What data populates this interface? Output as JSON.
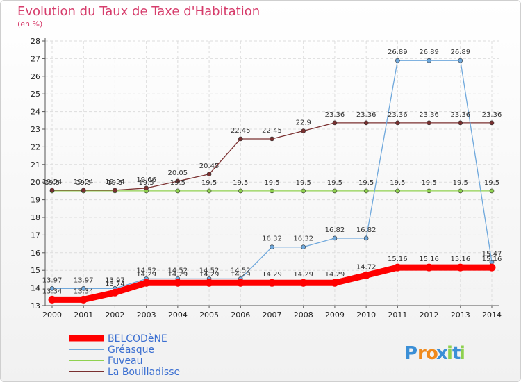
{
  "chart_data": {
    "type": "line",
    "title": "Evolution du Taux de Taxe d'Habitation",
    "subtitle": "(en %)",
    "x": [
      "2000",
      "2001",
      "2002",
      "2003",
      "2004",
      "2005",
      "2006",
      "2007",
      "2008",
      "2009",
      "2010",
      "2011",
      "2012",
      "2013",
      "2014"
    ],
    "ylim": [
      13,
      28
    ],
    "yticks": [
      13,
      14,
      15,
      16,
      17,
      18,
      19,
      20,
      21,
      22,
      23,
      24,
      25,
      26,
      27,
      28
    ],
    "grid": true,
    "legend_position": "bottom-left",
    "series": [
      {
        "name": "BELCODèNE",
        "color": "#ff0000",
        "values": [
          13.34,
          13.34,
          13.74,
          14.29,
          14.29,
          14.29,
          14.29,
          14.29,
          14.29,
          14.29,
          14.72,
          15.16,
          15.16,
          15.16,
          15.16
        ],
        "labels": [
          "13.34",
          "13.34",
          "13.74",
          "14.29",
          "14.29",
          "14.29",
          "14.29",
          "14.29",
          "14.29",
          "14.29",
          "14.72",
          "15.16",
          "15.16",
          "15.16",
          "15.16"
        ]
      },
      {
        "name": "Gréasque",
        "color": "#6fa8dc",
        "values": [
          13.97,
          13.97,
          13.97,
          14.52,
          14.52,
          14.52,
          14.52,
          16.32,
          16.32,
          16.82,
          16.82,
          26.89,
          26.89,
          26.89,
          15.47
        ],
        "labels": [
          "13.97",
          "13.97",
          "13.97",
          "14.52",
          "14.52",
          "14.52",
          "14.52",
          "16.32",
          "16.32",
          "16.82",
          "16.82",
          "26.89",
          "26.89",
          "26.89",
          "15.47"
        ]
      },
      {
        "name": "Fuveau",
        "color": "#8fd14f",
        "values": [
          19.5,
          19.5,
          19.5,
          19.5,
          19.5,
          19.5,
          19.5,
          19.5,
          19.5,
          19.5,
          19.5,
          19.5,
          19.5,
          19.5,
          19.5
        ],
        "labels": [
          "19.5",
          "19.5",
          "19.5",
          "19.5",
          "19.5",
          "19.5",
          "19.5",
          "19.5",
          "19.5",
          "19.5",
          "19.5",
          "19.5",
          "19.5",
          "19.5",
          "19.5"
        ]
      },
      {
        "name": "La Bouilladisse",
        "color": "#7a3030",
        "values": [
          19.54,
          19.54,
          19.54,
          19.66,
          20.05,
          20.45,
          22.45,
          22.45,
          22.9,
          23.36,
          23.36,
          23.36,
          23.36,
          23.36,
          23.36
        ],
        "labels": [
          "19.54",
          "19.54",
          "19.54",
          "19.66",
          "20.05",
          "20.45",
          "22.45",
          "22.45",
          "22.9",
          "23.36",
          "23.36",
          "23.36",
          "23.36",
          "23.36",
          "23.36"
        ]
      }
    ]
  },
  "brand": {
    "logo_text": "Proxiti",
    "letters": [
      "P",
      "r",
      "o",
      "x",
      "i",
      "t",
      "i"
    ],
    "colors": [
      "#3b8fd6",
      "#f08a1c",
      "#f08a1c",
      "#3b8fd6",
      "#8fd14f",
      "#3b8fd6",
      "#8fd14f"
    ]
  }
}
